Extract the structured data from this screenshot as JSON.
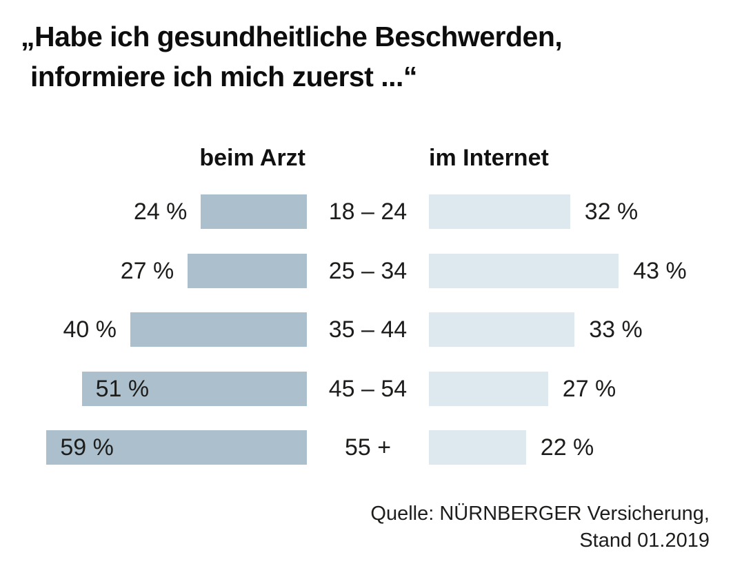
{
  "title": {
    "line1": "„Habe ich gesundheitliche Beschwerden,",
    "line2": "informiere ich mich zuerst ...“"
  },
  "chart_data": {
    "type": "bar",
    "variant": "diverging-horizontal",
    "title": "„Habe ich gesundheitliche Beschwerden, informiere ich mich zuerst ...“",
    "categories": [
      "18 – 24",
      "25 – 34",
      "35 – 44",
      "45 – 54",
      "55 +"
    ],
    "series": [
      {
        "name": "beim Arzt",
        "side": "left",
        "color": "#acbfcc",
        "values": [
          24,
          27,
          40,
          51,
          59
        ]
      },
      {
        "name": "im Internet",
        "side": "right",
        "color": "#dee8ef",
        "values": [
          32,
          43,
          33,
          27,
          22
        ]
      }
    ],
    "value_suffix": " %",
    "unit": "percent",
    "xmax": 65,
    "grid": false,
    "legend_position": "column-headers"
  },
  "source": {
    "line1": "Quelle: NÜRNBERGER Versicherung,",
    "line2": "Stand 01.2019"
  },
  "colors": {
    "background": "#ffffff",
    "text": "#1d1d1b",
    "bar_left": "#acbfcc",
    "bar_right": "#dee8ef"
  }
}
